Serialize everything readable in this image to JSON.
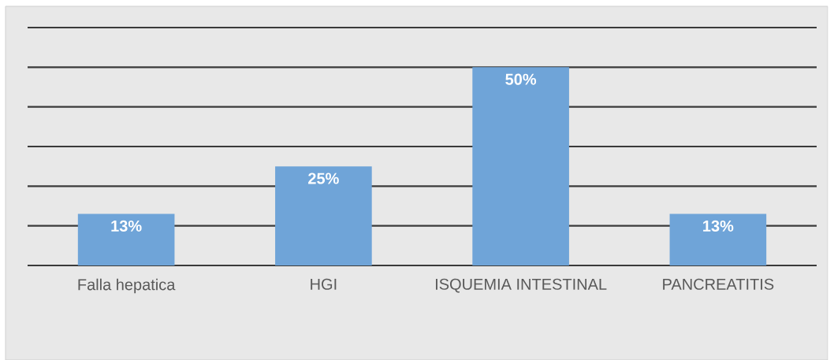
{
  "chart_data": {
    "type": "bar",
    "categories": [
      "Falla hepatica",
      "HGI",
      "ISQUEMIA INTESTINAL",
      "PANCREATITIS"
    ],
    "values": [
      13,
      25,
      50,
      13
    ],
    "color": "#6fa4d8",
    "value_labels": [
      "13%",
      "25%",
      "50%",
      "13%"
    ],
    "ylim": [
      0,
      60
    ],
    "yticks": [
      {
        "value": 0,
        "label": null
      },
      {
        "value": 10,
        "label": null
      },
      {
        "value": 20,
        "label": null
      },
      {
        "value": 30,
        "label": null
      },
      {
        "value": 40,
        "label": null
      },
      {
        "value": 50,
        "label": null
      },
      {
        "value": 60,
        "label": null
      }
    ],
    "grid": "y",
    "tick_labels": "x"
  }
}
